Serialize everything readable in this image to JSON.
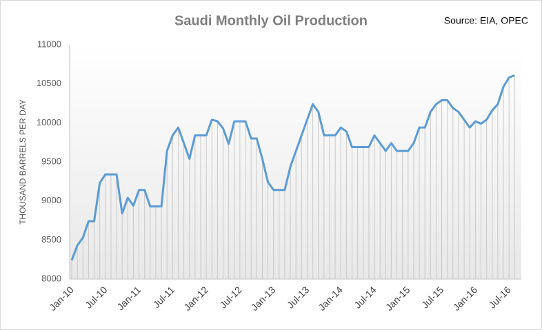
{
  "chart_data": {
    "type": "line",
    "title": "Saudi Monthly Oil Production",
    "source": "Source: EIA, OPEC",
    "y_label": "THOUSAND BARRELS PER DAY",
    "categories": [
      "Jan-10",
      null,
      null,
      null,
      null,
      null,
      "Jul-10",
      null,
      null,
      null,
      null,
      null,
      "Jan-11",
      null,
      null,
      null,
      null,
      null,
      "Jul-11",
      null,
      null,
      null,
      null,
      null,
      "Jan-12",
      null,
      null,
      null,
      null,
      null,
      "Jul-12",
      null,
      null,
      null,
      null,
      null,
      "Jan-13",
      null,
      null,
      null,
      null,
      null,
      "Jul-13",
      null,
      null,
      null,
      null,
      null,
      "Jan-14",
      null,
      null,
      null,
      null,
      null,
      "Jul-14",
      null,
      null,
      null,
      null,
      null,
      "Jan-15",
      null,
      null,
      null,
      null,
      null,
      "Jul-15",
      null,
      null,
      null,
      null,
      null,
      "Jan-16",
      null,
      null,
      null,
      null,
      null,
      "Jul-16",
      null
    ],
    "values": [
      8240,
      8430,
      8530,
      8740,
      8740,
      9230,
      9340,
      9340,
      9340,
      8840,
      9040,
      8940,
      9140,
      9140,
      8930,
      8930,
      8930,
      9640,
      9840,
      9940,
      9740,
      9540,
      9840,
      9840,
      9840,
      10040,
      10020,
      9930,
      9730,
      10020,
      10020,
      10020,
      9800,
      9800,
      9540,
      9240,
      9140,
      9140,
      9140,
      9440,
      9640,
      9840,
      10040,
      10240,
      10140,
      9840,
      9840,
      9840,
      9940,
      9890,
      9690,
      9690,
      9690,
      9690,
      9840,
      9740,
      9640,
      9740,
      9640,
      9640,
      9640,
      9740,
      9940,
      9940,
      10140,
      10240,
      10290,
      10290,
      10190,
      10140,
      10040,
      9940,
      10020,
      9990,
      10040,
      10160,
      10240,
      10460,
      10580,
      10610
    ],
    "color": "#5b9bd5",
    "ylim": [
      8000,
      11000
    ],
    "yticks": [
      8000,
      8500,
      9000,
      9500,
      10000,
      10500,
      11000
    ]
  }
}
